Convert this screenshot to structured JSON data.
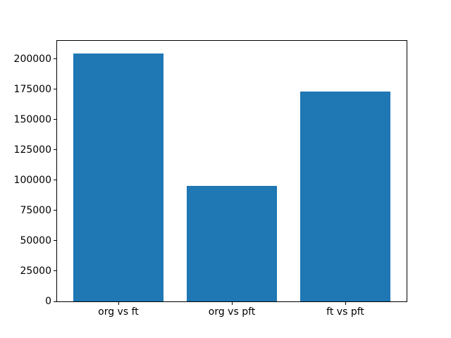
{
  "chart_data": {
    "type": "bar",
    "categories": [
      "org vs ft",
      "org vs pft",
      "ft vs pft"
    ],
    "values": [
      204800,
      95400,
      173300
    ],
    "title": "",
    "xlabel": "",
    "ylabel": "",
    "xlim": [
      -0.54,
      2.54
    ],
    "ylim": [
      0,
      215000
    ],
    "bar_width": 0.8,
    "yticks": [
      0,
      25000,
      50000,
      75000,
      100000,
      125000,
      150000,
      175000,
      200000
    ],
    "ytick_labels": [
      "0",
      "25000",
      "50000",
      "75000",
      "100000",
      "125000",
      "150000",
      "175000",
      "200000"
    ],
    "bar_color": "#1f77b4",
    "axis_color": "#000000",
    "text_color": "#000000",
    "background_color": "#ffffff",
    "grid": false,
    "legend_position": "none"
  }
}
